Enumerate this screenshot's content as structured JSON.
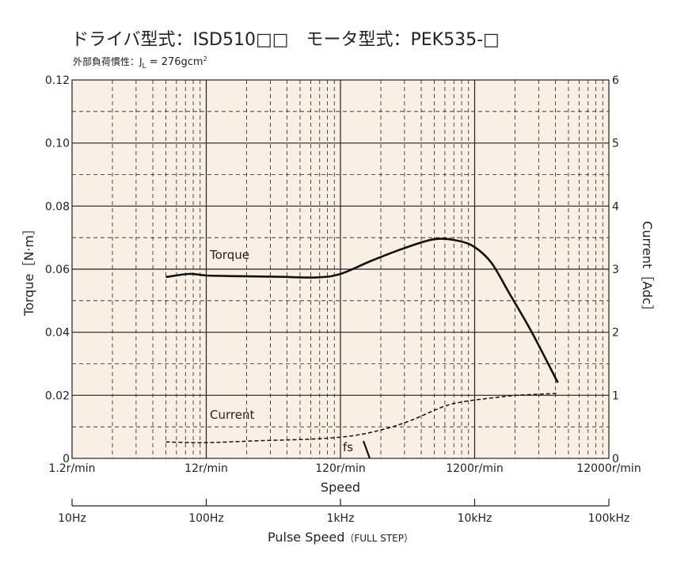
{
  "chart_data": {
    "type": "line",
    "title": "ドライバ型式：ISD510□□　モータ型式：PEK535-□",
    "subtitle_prefix": "外部負荷慣性：J",
    "subtitle_sub": "L",
    "subtitle_value": " = 276gcm",
    "subtitle_sup": "2",
    "xlabel": "Speed",
    "ylabel_left": "Torque［N·m］",
    "ylabel_right": "Current［Adc］",
    "x_scale": "log",
    "xlim_rpm": [
      1.2,
      12000
    ],
    "ylim_left": [
      0,
      0.12
    ],
    "ylim_right": [
      0,
      6
    ],
    "grid": true,
    "x_tick_labels": [
      "1.2r/min",
      "12r/min",
      "120r/min",
      "1200r/min",
      "12000r/min"
    ],
    "left_tick_labels": [
      "0",
      "0.02",
      "0.04",
      "0.06",
      "0.08",
      "0.10",
      "0.12"
    ],
    "right_tick_labels": [
      "0",
      "1",
      "2",
      "3",
      "4",
      "5",
      "6"
    ],
    "pulse_axis": {
      "label": "Pulse Speed",
      "label_note": "（FULL STEP）",
      "tick_labels": [
        "10Hz",
        "100Hz",
        "1kHz",
        "10kHz",
        "100kHz"
      ]
    },
    "annotations": {
      "torque": "Torque",
      "current": "Current",
      "fs": "fs"
    },
    "colors": {
      "background": "#f9efe2",
      "line": "#111111",
      "grid": "#222222"
    },
    "series": [
      {
        "name": "Torque",
        "axis": "left",
        "style": "solid",
        "x": [
          6,
          9,
          12,
          20,
          40,
          80,
          120,
          200,
          350,
          600,
          900,
          1200,
          1600,
          2200,
          3200,
          5000
        ],
        "y": [
          0.0575,
          0.0585,
          0.058,
          0.0578,
          0.0576,
          0.0574,
          0.0585,
          0.0625,
          0.0665,
          0.0695,
          0.069,
          0.067,
          0.062,
          0.052,
          0.04,
          0.024
        ]
      },
      {
        "name": "Current",
        "axis": "right",
        "style": "dashed",
        "x": [
          6,
          12,
          30,
          80,
          150,
          250,
          400,
          700,
          1000,
          1500,
          2500,
          5000
        ],
        "y": [
          0.26,
          0.25,
          0.28,
          0.31,
          0.36,
          0.46,
          0.6,
          0.82,
          0.9,
          0.95,
          1.0,
          1.03
        ]
      }
    ]
  }
}
